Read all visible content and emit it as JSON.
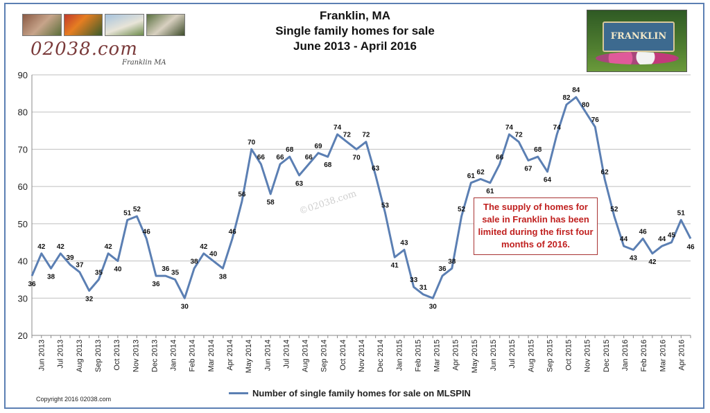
{
  "header": {
    "title_lines": [
      "Franklin, MA",
      "Single family homes for sale",
      "June 2013 - April 2016"
    ],
    "logo_text": "02038.com",
    "logo_subtext": "Franklin MA",
    "sign_text": "FRANKLIN"
  },
  "annotation": "The supply of homes for sale in Franklin has been limited during the first four months of 2016.",
  "watermark": "©02038.com",
  "copyright": "Copyright 2016 02038.com",
  "colors": {
    "line": "#5b7fb3",
    "grid": "#bfbfbf",
    "annotation": "#c0201f"
  },
  "chart_data": {
    "type": "line",
    "title": "Franklin, MA Single family homes for sale June 2013 - April 2016",
    "xlabel": "",
    "ylabel": "",
    "ylim": [
      20,
      90
    ],
    "yticks": [
      20,
      30,
      40,
      50,
      60,
      70,
      80,
      90
    ],
    "grid": true,
    "legend_position": "bottom",
    "month_labels": [
      "Jun 2013",
      "Jul 2013",
      "Aug 2013",
      "Sep 2013",
      "Oct 2013",
      "Nov 2013",
      "Dec 2013",
      "Jan 2014",
      "Feb 2014",
      "Mar 2014",
      "Apr 2014",
      "May 2014",
      "Jun 2014",
      "Jul 2014",
      "Aug 2014",
      "Sep 2014",
      "Oct 2014",
      "Nov 2014",
      "Dec 2014",
      "Jan 2015",
      "Feb 2015",
      "Mar 2015",
      "Apr 2015",
      "May 2015",
      "Jun 2015",
      "Jul 2015",
      "Aug 2015",
      "Sep 2015",
      "Oct 2015",
      "Nov 2015",
      "Dec 2015",
      "Jan 2016",
      "Feb 2016",
      "Mar 2016",
      "Apr 2016"
    ],
    "series": [
      {
        "name": "Number of single family homes for sale on MLSPIN",
        "values": [
          36,
          42,
          38,
          42,
          39,
          37,
          32,
          35,
          42,
          40,
          51,
          52,
          46,
          36,
          36,
          35,
          30,
          38,
          42,
          40,
          38,
          46,
          56,
          70,
          66,
          58,
          66,
          68,
          63,
          66,
          69,
          68,
          74,
          72,
          70,
          72,
          63,
          53,
          41,
          43,
          33,
          31,
          30,
          36,
          38,
          52,
          61,
          62,
          61,
          66,
          74,
          72,
          67,
          68,
          64,
          74,
          82,
          84,
          80,
          76,
          62,
          52,
          44,
          43,
          46,
          42,
          44,
          45,
          51,
          46
        ]
      }
    ]
  }
}
